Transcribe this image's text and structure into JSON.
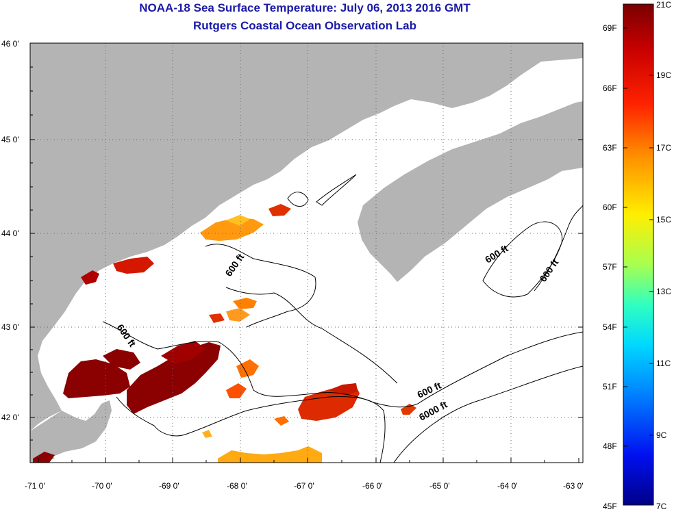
{
  "title_line1": "NOAA-18 Sea Surface Temperature:  July 06, 2013 2016 GMT",
  "title_line2": "Rutgers Coastal Ocean Observation Lab",
  "lat_ticks": [
    "46 0'",
    "45 0'",
    "44 0'",
    "43 0'",
    "42 0'"
  ],
  "lon_ticks": [
    "-71 0'",
    "-70 0'",
    "-69 0'",
    "-68 0'",
    "-67 0'",
    "-66 0'",
    "-65 0'",
    "-64 0'",
    "-63 0'"
  ],
  "depth_labels": [
    "600 ft",
    "600 ft",
    "600 ft",
    "600 ft",
    "600 ft",
    "6000 ft"
  ],
  "colorbar": {
    "fahrenheit": [
      "69F",
      "66F",
      "63F",
      "60F",
      "57F",
      "54F",
      "51F",
      "48F",
      "45F"
    ],
    "celsius": [
      "21C",
      "19C",
      "17C",
      "15C",
      "13C",
      "11C",
      "9C",
      "7C"
    ],
    "colors": [
      "#8b0000",
      "#d40000",
      "#ff3000",
      "#ff8a00",
      "#ffe100",
      "#b8ff40",
      "#40ffb0",
      "#00d8ff",
      "#0078ff",
      "#0018ff",
      "#00008b"
    ]
  },
  "colors": {
    "land": "#b4b4b4",
    "title": "#1a1aa8"
  }
}
